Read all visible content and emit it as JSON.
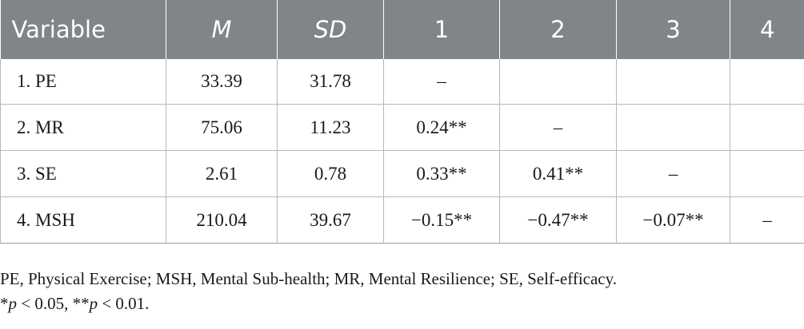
{
  "table": {
    "headers": [
      "Variable",
      "M",
      "SD",
      "1",
      "2",
      "3",
      "4"
    ],
    "rows": [
      [
        "1. PE",
        "33.39",
        "31.78",
        "–",
        "",
        "",
        ""
      ],
      [
        "2. MR",
        "75.06",
        "11.23",
        "0.24**",
        "–",
        "",
        ""
      ],
      [
        "3. SE",
        "2.61",
        "0.78",
        "0.33**",
        "0.41**",
        "–",
        ""
      ],
      [
        "4. MSH",
        "210.04",
        "39.67",
        "−0.15**",
        "−0.47**",
        "−0.07**",
        "–"
      ]
    ]
  },
  "notes": {
    "abbreviations": "PE, Physical Exercise; MSH, Mental Sub-health; MR, Mental Resilience; SE, Self-efficacy.",
    "sig_star1": "*",
    "sig_p1": "p",
    "sig_text1": " < 0.05, **",
    "sig_p2": "p",
    "sig_text2": " < 0.01."
  },
  "colors": {
    "header_bg": "#808589",
    "header_text": "#ffffff",
    "grid_line": "#b8b8b8"
  }
}
